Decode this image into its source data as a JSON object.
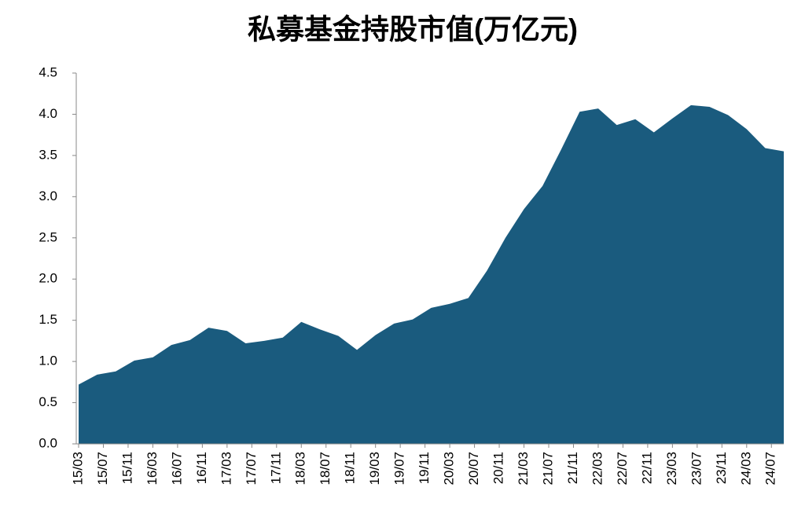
{
  "chart_data": {
    "type": "area",
    "title": "私募基金持股市值(万亿元)",
    "x": [
      "15/03",
      "15/06",
      "15/09",
      "15/12",
      "16/03",
      "16/06",
      "16/09",
      "16/12",
      "17/03",
      "17/06",
      "17/09",
      "17/12",
      "18/03",
      "18/06",
      "18/09",
      "18/12",
      "19/03",
      "19/06",
      "19/09",
      "19/12",
      "20/03",
      "20/06",
      "20/09",
      "20/12",
      "21/03",
      "21/06",
      "21/09",
      "21/12",
      "22/03",
      "22/06",
      "22/09",
      "22/12",
      "23/03",
      "23/06",
      "23/09",
      "23/12",
      "24/03",
      "24/06",
      "24/09"
    ],
    "values": [
      0.72,
      0.84,
      0.88,
      1.01,
      1.05,
      1.2,
      1.26,
      1.41,
      1.37,
      1.22,
      1.25,
      1.29,
      1.48,
      1.39,
      1.31,
      1.14,
      1.32,
      1.46,
      1.51,
      1.65,
      1.7,
      1.77,
      2.1,
      2.5,
      2.85,
      3.13,
      3.57,
      4.03,
      4.07,
      3.87,
      3.94,
      3.78,
      3.95,
      4.11,
      4.09,
      3.99,
      3.82,
      3.59,
      3.55
    ],
    "color": "#1a5b7e",
    "xticks": [
      "15/03",
      "15/07",
      "15/11",
      "16/03",
      "16/07",
      "16/11",
      "17/03",
      "17/07",
      "17/11",
      "18/03",
      "18/07",
      "18/11",
      "19/03",
      "19/07",
      "19/11",
      "20/03",
      "20/07",
      "20/11",
      "21/03",
      "21/07",
      "21/11",
      "22/03",
      "22/07",
      "22/11",
      "23/03",
      "23/07",
      "23/11",
      "24/03",
      "24/07"
    ],
    "ylim": [
      0,
      4.5
    ],
    "yticks": [
      {
        "value": 0,
        "label": "0.0"
      },
      {
        "value": 0.5,
        "label": "0.5"
      },
      {
        "value": 1,
        "label": "1.0"
      },
      {
        "value": 1.5,
        "label": "1.5"
      },
      {
        "value": 2,
        "label": "2.0"
      },
      {
        "value": 2.5,
        "label": "2.5"
      },
      {
        "value": 3,
        "label": "3.0"
      },
      {
        "value": 3.5,
        "label": "3.5"
      },
      {
        "value": 4,
        "label": "4.0"
      },
      {
        "value": 4.5,
        "label": "4.5"
      }
    ]
  }
}
